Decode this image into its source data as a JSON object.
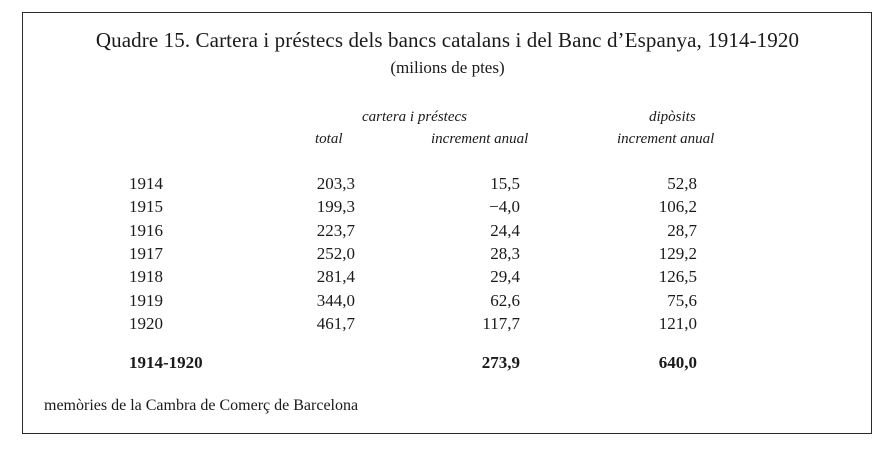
{
  "title": "Quadre 15. Cartera i préstecs dels bancs catalans i del Banc d’Espanya, 1914-1920",
  "subtitle": "(milions de ptes)",
  "headers": {
    "group1": "cartera i préstecs",
    "group2": "dipòsits",
    "total": "total",
    "increment1": "increment anual",
    "increment2": "increment anual"
  },
  "rows": [
    {
      "year": "1914",
      "total": "203,3",
      "increment": "15,5",
      "deposits": "52,8"
    },
    {
      "year": "1915",
      "total": "199,3",
      "increment": "−4,0",
      "deposits": "106,2"
    },
    {
      "year": "1916",
      "total": "223,7",
      "increment": "24,4",
      "deposits": "28,7"
    },
    {
      "year": "1917",
      "total": "252,0",
      "increment": "28,3",
      "deposits": "129,2"
    },
    {
      "year": "1918",
      "total": "281,4",
      "increment": "29,4",
      "deposits": "126,5"
    },
    {
      "year": "1919",
      "total": "344,0",
      "increment": "62,6",
      "deposits": "75,6"
    },
    {
      "year": "1920",
      "total": "461,7",
      "increment": "117,7",
      "deposits": "121,0"
    }
  ],
  "summary": {
    "label": "1914-1920",
    "increment": "273,9",
    "deposits": "640,0"
  },
  "source": "memòries de la Cambra de Comerç de Barcelona"
}
